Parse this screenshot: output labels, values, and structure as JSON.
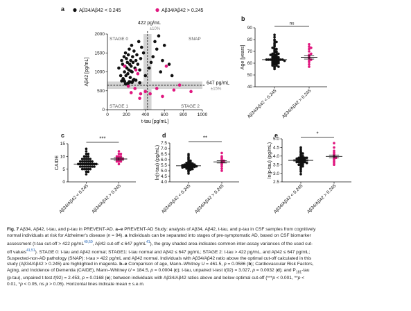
{
  "chart_data": [
    {
      "panel": "a",
      "type": "scatter",
      "legend": [
        "Aβ34/Aβ42 < 0.245",
        "Aβ34/Aβ42 > 0.245"
      ],
      "xlabel": "t-tau [pg/mL]",
      "ylabel": "Aβ42 [pg/mL]",
      "xlim": [
        0,
        1000
      ],
      "ylim": [
        0,
        2000
      ],
      "xticks": [
        "0",
        "200",
        "400",
        "600",
        "800",
        "1000"
      ],
      "yticks": [
        "0",
        "500",
        "1000",
        "1500",
        "2000"
      ],
      "cutoffs": {
        "x": {
          "label": "422 pg/mL",
          "sub": "±10%",
          "value": 422
        },
        "y": {
          "label": "647 pg/mL",
          "sub": "±15%",
          "value": 647
        }
      },
      "quadrants": [
        "STAGE 0",
        "SNAP",
        "STAGE 1",
        "STAGE 2"
      ],
      "series": [
        {
          "name": "Aβ34/Aβ42 < 0.245",
          "color": "#111111",
          "x": [
            120,
            140,
            150,
            160,
            170,
            175,
            180,
            185,
            190,
            195,
            200,
            205,
            210,
            215,
            220,
            225,
            230,
            235,
            240,
            245,
            250,
            255,
            260,
            265,
            270,
            280,
            290,
            300,
            310,
            320,
            330,
            340,
            350,
            360,
            380,
            400,
            440,
            460,
            480,
            500,
            520,
            540,
            560,
            580,
            600,
            650,
            680,
            220,
            180,
            260,
            300,
            150,
            210,
            240,
            280,
            340,
            190,
            230,
            270,
            165,
            245
          ],
          "y": [
            1100,
            900,
            1300,
            1200,
            800,
            1400,
            1000,
            1150,
            1500,
            900,
            1350,
            1100,
            1250,
            950,
            1450,
            1050,
            1600,
            1200,
            850,
            1300,
            1150,
            1700,
            1000,
            1400,
            1250,
            1550,
            1100,
            1300,
            1450,
            1200,
            1800,
            1050,
            1350,
            1650,
            1500,
            900,
            1100,
            1250,
            1400,
            1800,
            1600,
            1950,
            1000,
            1300,
            1700,
            1200,
            900,
            700,
            750,
            720,
            780,
            760,
            690,
            730,
            800,
            710,
            680,
            740,
            770,
            820,
            1020
          ]
        },
        {
          "name": "Aβ34/Aβ42 > 0.245",
          "color": "#e0177f",
          "x": [
            180,
            220,
            250,
            290,
            320,
            340,
            400,
            450,
            520,
            580,
            620,
            700,
            760,
            880,
            350,
            300
          ],
          "y": [
            1150,
            620,
            450,
            560,
            950,
            300,
            480,
            420,
            560,
            350,
            1150,
            520,
            650,
            480,
            420,
            1050
          ]
        }
      ]
    },
    {
      "panel": "b",
      "type": "scatter",
      "ylabel": "Age [years]",
      "ylim": [
        40,
        90
      ],
      "yticks": [
        "40",
        "50",
        "60",
        "70",
        "80",
        "90"
      ],
      "categories": [
        "Aβ34/Aβ42 < 0.245",
        "Aβ34/Aβ42 > 0.245"
      ],
      "significance": "ns",
      "series": [
        {
          "name": "Aβ34/Aβ42 < 0.245",
          "color": "#111111",
          "mean": 63,
          "sem": 0.6,
          "values": [
            55,
            56,
            57,
            58,
            58,
            59,
            59,
            60,
            60,
            60,
            61,
            61,
            61,
            62,
            62,
            62,
            62,
            63,
            63,
            63,
            63,
            64,
            64,
            64,
            65,
            65,
            65,
            66,
            66,
            66,
            67,
            67,
            68,
            68,
            69,
            69,
            70,
            70,
            71,
            72,
            72,
            73,
            74,
            75,
            76,
            77,
            78,
            79,
            80,
            82,
            84,
            57,
            59,
            61,
            63,
            65,
            67,
            60,
            62,
            64
          ]
        },
        {
          "name": "Aβ34/Aβ42 > 0.245",
          "color": "#e0177f",
          "mean": 65,
          "sem": 1.5,
          "values": [
            57,
            59,
            61,
            62,
            63,
            64,
            65,
            66,
            67,
            68,
            70,
            72,
            73,
            74,
            76
          ]
        }
      ]
    },
    {
      "panel": "c",
      "type": "scatter",
      "ylabel": "CAIDE",
      "ylim": [
        0,
        15
      ],
      "yticks": [
        "0",
        "5",
        "10",
        "15"
      ],
      "categories": [
        "Aβ34/Aβ42 < 0.245",
        "Aβ34/Aβ42 > 0.245"
      ],
      "significance": "***",
      "series": [
        {
          "name": "Aβ34/Aβ42 < 0.245",
          "color": "#111111",
          "mean": 7,
          "sem": 0.25,
          "values": [
            3,
            4,
            4,
            5,
            5,
            5,
            5,
            6,
            6,
            6,
            6,
            6,
            6,
            7,
            7,
            7,
            7,
            7,
            7,
            7,
            7,
            8,
            8,
            8,
            8,
            8,
            8,
            9,
            9,
            9,
            9,
            10,
            10,
            10,
            11,
            11,
            12,
            13,
            5,
            6,
            7,
            8,
            7,
            6,
            9
          ]
        },
        {
          "name": "Aβ34/Aβ42 > 0.245",
          "color": "#e0177f",
          "mean": 9,
          "sem": 0.5,
          "values": [
            7,
            8,
            8,
            8,
            9,
            9,
            9,
            9,
            10,
            10,
            10,
            11,
            11,
            12
          ]
        }
      ]
    },
    {
      "panel": "d",
      "type": "scatter",
      "ylabel": "ln(t-tau) (pg/mL)",
      "ylim": [
        4,
        7.5
      ],
      "yticks": [
        "4.0",
        "4.5",
        "5.0",
        "5.5",
        "6.0",
        "6.5",
        "7.0",
        "7.5"
      ],
      "categories": [
        "Aβ34/Aβ42 < 0.245",
        "Aβ34/Aβ42 > 0.245"
      ],
      "significance": "**",
      "series": [
        {
          "name": "Aβ34/Aβ42 < 0.245",
          "color": "#111111",
          "mean": 5.45,
          "sem": 0.04,
          "values": [
            4.75,
            4.9,
            5.0,
            5.05,
            5.1,
            5.15,
            5.2,
            5.2,
            5.25,
            5.3,
            5.3,
            5.3,
            5.35,
            5.35,
            5.4,
            5.4,
            5.4,
            5.45,
            5.45,
            5.45,
            5.5,
            5.5,
            5.5,
            5.55,
            5.55,
            5.6,
            5.6,
            5.6,
            5.65,
            5.7,
            5.7,
            5.75,
            5.8,
            5.85,
            5.9,
            6.0,
            6.1,
            6.2,
            6.35,
            6.5,
            5.25,
            5.35,
            5.45,
            5.55,
            5.65,
            5.15,
            5.5,
            5.4,
            5.3,
            5.6
          ]
        },
        {
          "name": "Aβ34/Aβ42 > 0.245",
          "color": "#e0177f",
          "mean": 5.8,
          "sem": 0.1,
          "values": [
            5.2,
            5.4,
            5.55,
            5.6,
            5.7,
            5.75,
            5.8,
            5.85,
            5.9,
            6.0,
            6.1,
            6.2,
            6.3,
            6.6,
            5.0
          ]
        }
      ]
    },
    {
      "panel": "e",
      "type": "scatter",
      "ylabel": "ln(p-tau) (pg/mL)",
      "ylim": [
        2.5,
        5
      ],
      "yticks": [
        "2.5",
        "3.0",
        "3.5",
        "4.0",
        "4.5",
        "5.0"
      ],
      "categories": [
        "Aβ34/Aβ42 < 0.245",
        "Aβ34/Aβ42 > 0.245"
      ],
      "significance": "*",
      "series": [
        {
          "name": "Aβ34/Aβ42 < 0.245",
          "color": "#111111",
          "mean": 3.75,
          "sem": 0.04,
          "values": [
            2.95,
            3.1,
            3.2,
            3.3,
            3.35,
            3.4,
            3.45,
            3.5,
            3.5,
            3.55,
            3.6,
            3.6,
            3.65,
            3.65,
            3.7,
            3.7,
            3.7,
            3.75,
            3.75,
            3.75,
            3.8,
            3.8,
            3.8,
            3.85,
            3.85,
            3.9,
            3.9,
            3.95,
            4.0,
            4.0,
            4.05,
            4.1,
            4.15,
            4.2,
            4.25,
            4.3,
            4.4,
            4.5,
            3.55,
            3.65,
            3.75,
            3.85,
            3.95,
            3.7,
            3.6,
            3.8,
            3.9,
            3.5
          ]
        },
        {
          "name": "Aβ34/Aβ42 > 0.245",
          "color": "#e0177f",
          "mean": 3.98,
          "sem": 0.08,
          "values": [
            3.5,
            3.6,
            3.7,
            3.8,
            3.85,
            3.9,
            3.95,
            4.0,
            4.05,
            4.1,
            4.2,
            4.3,
            4.5,
            4.75
          ]
        }
      ]
    }
  ],
  "caption": {
    "lines": [
      [
        {
          "b": "Fig. 7"
        },
        {
          "t": " Aβ34, Aβ42, t-tau, and p-tau in PREVENT-AD. "
        },
        {
          "b": "a–e"
        },
        {
          "t": " PREVENT-AD Study: analysis of Aβ34, Aβ42, t-tau, and p-tau in CSF samples from cognitively"
        }
      ],
      [
        {
          "t": "normal individuals at risk for Alzheimer's disease ("
        },
        {
          "i": "n"
        },
        {
          "t": " = 94). "
        },
        {
          "b": "a"
        },
        {
          "t": " Individuals can be separated into stages of pre-symptomatic AD, based on CSF biomarker"
        }
      ],
      [
        {
          "t": "assessment (t-tau cut-off > 422 pg/mL"
        },
        {
          "sup": "49,50"
        },
        {
          "t": ", Aβ42 cut-off ≤ 647 pg/mL"
        },
        {
          "sup": "41"
        },
        {
          "t": "), the gray shaded area indicates common inter-assay variances of the used cut-"
        }
      ],
      [
        {
          "t": "off values"
        },
        {
          "sup": "41,51"
        },
        {
          "t": "). STAGE 0: t-tau and Aβ42 normal; STAGE1: t-tau normal and Aβ42 ≤ 647 pg/mL; STAGE 2: t-tau > 422 pg/mL, and Aβ42 ≤ 647 pg/mL;"
        }
      ],
      [
        {
          "t": "Suspected-non-AD pathology (SNAP): t-tau > 422 pg/mL and Aβ42 normal. Individuals with Aβ34/Aβ42 ratio above the optimal cut-off calculated in this"
        }
      ],
      [
        {
          "t": "study (Aβ34/Aβ42 > 0.245) are highlighted in magenta. "
        },
        {
          "b": "b–e"
        },
        {
          "t": " Comparison of age, Mann–Whitney "
        },
        {
          "i": "U"
        },
        {
          "t": " = 461.5, "
        },
        {
          "i": "p"
        },
        {
          "t": " = 0.0586 ("
        },
        {
          "b": "b"
        },
        {
          "t": "); Cardiovascular Risk Factors,"
        }
      ],
      [
        {
          "t": "Aging, and Incidence of Dementia (CAIDE), Mann–Whitney "
        },
        {
          "i": "U"
        },
        {
          "t": " = 184.5, "
        },
        {
          "i": "p"
        },
        {
          "t": " = 0.0004 ("
        },
        {
          "b": "c"
        },
        {
          "t": "); t-tau, unpaired t-test "
        },
        {
          "i": "t"
        },
        {
          "t": "(92) = 3.027, "
        },
        {
          "i": "p"
        },
        {
          "t": " = 0.0032 ("
        },
        {
          "b": "d"
        },
        {
          "t": "); and P"
        },
        {
          "sub": "181"
        },
        {
          "t": "-tau"
        }
      ],
      [
        {
          "t": "(p-tau), unpaired t-test "
        },
        {
          "i": "t"
        },
        {
          "t": "(92) = 2.453, "
        },
        {
          "i": "p"
        },
        {
          "t": " = 0.0168 ("
        },
        {
          "b": "e"
        },
        {
          "t": "); between individuals with Aβ34/Aβ42 ratios above and below optimal cut-off (***"
        },
        {
          "i": "p"
        },
        {
          "t": " < 0.001, **"
        },
        {
          "i": "p"
        },
        {
          "t": " <"
        }
      ],
      [
        {
          "t": "0.01, *"
        },
        {
          "i": "p"
        },
        {
          "t": " < 0.05, ns "
        },
        {
          "i": "p"
        },
        {
          "t": " > 0.05). Horizontal lines indicate mean ± s.e.m."
        }
      ]
    ]
  }
}
